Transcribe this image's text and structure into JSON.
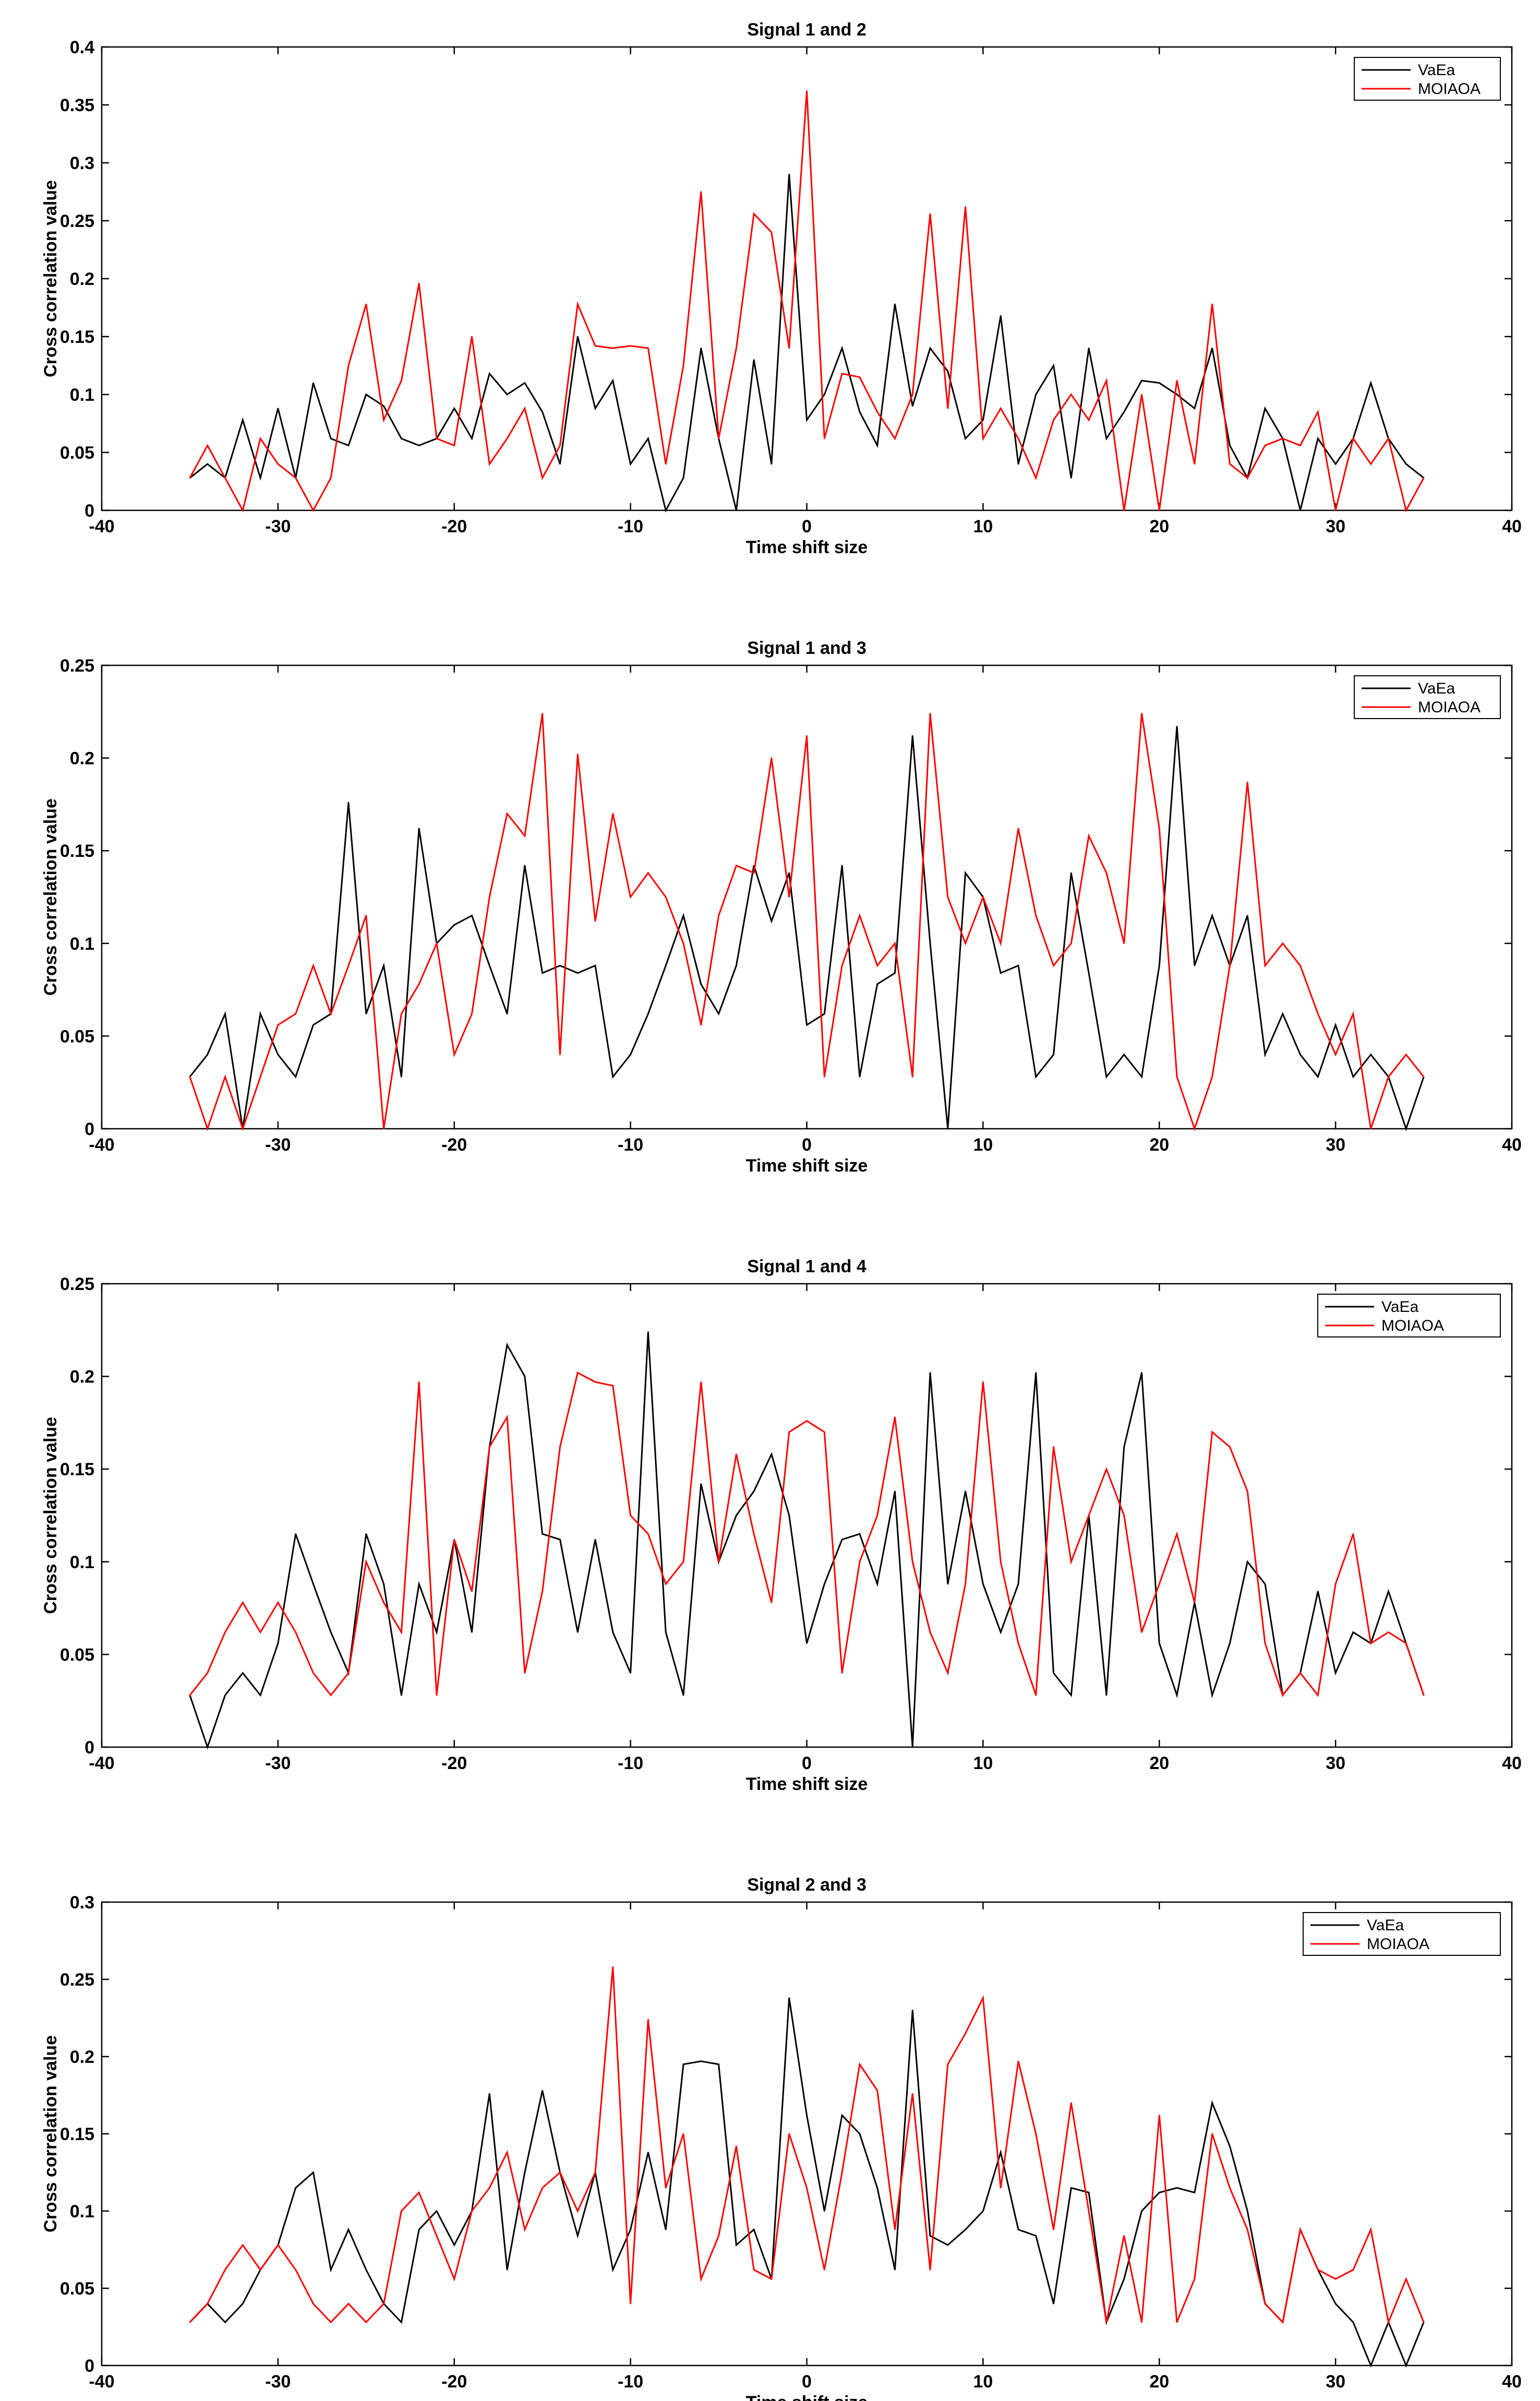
{
  "chart_data": [
    {
      "type": "line",
      "title": "Signal 1 and 2",
      "xlabel": "Time shift size",
      "ylabel": "Cross correlation value",
      "xlim": [
        -40,
        40
      ],
      "ylim": [
        0,
        0.4
      ],
      "xticks": [
        -40,
        -30,
        -20,
        -10,
        0,
        10,
        20,
        30,
        40
      ],
      "yticks": [
        0,
        0.05,
        0.1,
        0.15,
        0.2,
        0.25,
        0.3,
        0.35,
        0.4
      ],
      "xtick_labels": [
        "-40",
        "-30",
        "-20",
        "-10",
        "0",
        "10",
        "20",
        "30",
        "40"
      ],
      "ytick_labels": [
        "0",
        "0.05",
        "0.1",
        "0.15",
        "0.2",
        "0.25",
        "0.3",
        "0.35",
        "0.4"
      ],
      "legend_position": "top-right",
      "x": [
        -35,
        -34,
        -33,
        -32,
        -31,
        -30,
        -29,
        -28,
        -27,
        -26,
        -25,
        -24,
        -23,
        -22,
        -21,
        -20,
        -19,
        -18,
        -17,
        -16,
        -15,
        -14,
        -13,
        -12,
        -11,
        -10,
        -9,
        -8,
        -7,
        -6,
        -5,
        -4,
        -3,
        -2,
        -1,
        0,
        1,
        2,
        3,
        4,
        5,
        6,
        7,
        8,
        9,
        10,
        11,
        12,
        13,
        14,
        15,
        16,
        17,
        18,
        19,
        20,
        21,
        22,
        23,
        24,
        25,
        26,
        27,
        28,
        29,
        30,
        31,
        32,
        33,
        34,
        35
      ],
      "series": [
        {
          "name": "VaEa",
          "color": "#000000",
          "values": [
            0.028,
            0.04,
            0.028,
            0.078,
            0.028,
            0.088,
            0.028,
            0.11,
            0.062,
            0.056,
            0.1,
            0.09,
            0.062,
            0.056,
            0.062,
            0.088,
            0.062,
            0.118,
            0.1,
            0.11,
            0.085,
            0.04,
            0.15,
            0.088,
            0.112,
            0.04,
            0.062,
            0.0,
            0.028,
            0.14,
            0.062,
            0.0,
            0.13,
            0.04,
            0.29,
            0.078,
            0.1,
            0.14,
            0.085,
            0.056,
            0.178,
            0.09,
            0.14,
            0.12,
            0.062,
            0.078,
            0.168,
            0.04,
            0.1,
            0.125,
            0.028,
            0.14,
            0.062,
            0.085,
            0.112,
            0.11,
            0.1,
            0.088,
            0.14,
            0.056,
            0.028,
            0.088,
            0.062,
            0.0,
            0.062,
            0.04,
            0.062,
            0.11,
            0.062,
            0.04,
            0.028
          ]
        },
        {
          "name": "MOIAOA",
          "color": "#ff0000",
          "values": [
            0.028,
            0.056,
            0.028,
            0.0,
            0.062,
            0.04,
            0.028,
            0.0,
            0.028,
            0.125,
            0.178,
            0.078,
            0.112,
            0.196,
            0.062,
            0.056,
            0.15,
            0.04,
            0.062,
            0.088,
            0.028,
            0.056,
            0.178,
            0.142,
            0.14,
            0.142,
            0.14,
            0.04,
            0.125,
            0.275,
            0.062,
            0.14,
            0.256,
            0.24,
            0.14,
            0.362,
            0.062,
            0.118,
            0.115,
            0.085,
            0.062,
            0.1,
            0.256,
            0.088,
            0.262,
            0.062,
            0.088,
            0.062,
            0.028,
            0.078,
            0.1,
            0.078,
            0.112,
            0.0,
            0.1,
            0.0,
            0.112,
            0.04,
            0.178,
            0.04,
            0.028,
            0.056,
            0.062,
            0.056,
            0.085,
            0.0,
            0.062,
            0.04,
            0.062,
            0.0,
            0.028
          ]
        }
      ]
    },
    {
      "type": "line",
      "title": "Signal 1 and 3",
      "xlabel": "Time shift size",
      "ylabel": "Cross correlation value",
      "xlim": [
        -40,
        40
      ],
      "ylim": [
        0,
        0.25
      ],
      "xticks": [
        -40,
        -30,
        -20,
        -10,
        0,
        10,
        20,
        30,
        40
      ],
      "yticks": [
        0,
        0.05,
        0.1,
        0.15,
        0.2,
        0.25
      ],
      "xtick_labels": [
        "-40",
        "-30",
        "-20",
        "-10",
        "0",
        "10",
        "20",
        "30",
        "40"
      ],
      "ytick_labels": [
        "0",
        "0.05",
        "0.1",
        "0.15",
        "0.2",
        "0.25"
      ],
      "legend_position": "top-right",
      "x": [
        -35,
        -34,
        -33,
        -32,
        -31,
        -30,
        -29,
        -28,
        -27,
        -26,
        -25,
        -24,
        -23,
        -22,
        -21,
        -20,
        -19,
        -18,
        -17,
        -16,
        -15,
        -14,
        -13,
        -12,
        -11,
        -10,
        -9,
        -8,
        -7,
        -6,
        -5,
        -4,
        -3,
        -2,
        -1,
        0,
        1,
        2,
        3,
        4,
        5,
        6,
        7,
        8,
        9,
        10,
        11,
        12,
        13,
        14,
        15,
        16,
        17,
        18,
        19,
        20,
        21,
        22,
        23,
        24,
        25,
        26,
        27,
        28,
        29,
        30,
        31,
        32,
        33,
        34,
        35
      ],
      "series": [
        {
          "name": "VaEa",
          "color": "#000000",
          "values": [
            0.028,
            0.04,
            0.062,
            0.0,
            0.062,
            0.04,
            0.028,
            0.056,
            0.062,
            0.176,
            0.062,
            0.088,
            0.028,
            0.162,
            0.1,
            0.11,
            0.115,
            0.088,
            0.062,
            0.142,
            0.084,
            0.088,
            0.084,
            0.088,
            0.028,
            0.04,
            0.062,
            0.088,
            0.115,
            0.078,
            0.062,
            0.088,
            0.142,
            0.112,
            0.138,
            0.056,
            0.062,
            0.142,
            0.028,
            0.078,
            0.084,
            0.212,
            0.1,
            0.0,
            0.138,
            0.125,
            0.084,
            0.088,
            0.028,
            0.04,
            0.138,
            0.084,
            0.028,
            0.04,
            0.028,
            0.088,
            0.217,
            0.088,
            0.115,
            0.088,
            0.115,
            0.04,
            0.062,
            0.04,
            0.028,
            0.056,
            0.028,
            0.04,
            0.028,
            0.0,
            0.028
          ]
        },
        {
          "name": "MOIAOA",
          "color": "#ff0000",
          "values": [
            0.028,
            0.0,
            0.028,
            0.0,
            0.028,
            0.056,
            0.062,
            0.088,
            0.062,
            0.088,
            0.115,
            0.0,
            0.062,
            0.078,
            0.1,
            0.04,
            0.062,
            0.125,
            0.17,
            0.158,
            0.224,
            0.04,
            0.202,
            0.112,
            0.17,
            0.125,
            0.138,
            0.125,
            0.1,
            0.056,
            0.115,
            0.142,
            0.138,
            0.2,
            0.125,
            0.212,
            0.028,
            0.088,
            0.115,
            0.088,
            0.1,
            0.028,
            0.224,
            0.125,
            0.1,
            0.125,
            0.1,
            0.162,
            0.115,
            0.088,
            0.1,
            0.158,
            0.138,
            0.1,
            0.224,
            0.162,
            0.028,
            0.0,
            0.028,
            0.088,
            0.187,
            0.088,
            0.1,
            0.088,
            0.062,
            0.04,
            0.062,
            0.0,
            0.028,
            0.04,
            0.028
          ]
        }
      ]
    },
    {
      "type": "line",
      "title": "Signal 1 and 4",
      "xlabel": "Time shift size",
      "ylabel": "Cross correlation value",
      "xlim": [
        -40,
        40
      ],
      "ylim": [
        0,
        0.25
      ],
      "xticks": [
        -40,
        -30,
        -20,
        -10,
        0,
        10,
        20,
        30,
        40
      ],
      "yticks": [
        0,
        0.05,
        0.1,
        0.15,
        0.2,
        0.25
      ],
      "xtick_labels": [
        "-40",
        "-30",
        "-20",
        "-10",
        "0",
        "10",
        "20",
        "30",
        "40"
      ],
      "ytick_labels": [
        "0",
        "0.05",
        "0.1",
        "0.15",
        "0.2",
        "0.25"
      ],
      "legend_position": "top-right",
      "x": [
        -35,
        -34,
        -33,
        -32,
        -31,
        -30,
        -29,
        -28,
        -27,
        -26,
        -25,
        -24,
        -23,
        -22,
        -21,
        -20,
        -19,
        -18,
        -17,
        -16,
        -15,
        -14,
        -13,
        -12,
        -11,
        -10,
        -9,
        -8,
        -7,
        -6,
        -5,
        -4,
        -3,
        -2,
        -1,
        0,
        1,
        2,
        3,
        4,
        5,
        6,
        7,
        8,
        9,
        10,
        11,
        12,
        13,
        14,
        15,
        16,
        17,
        18,
        19,
        20,
        21,
        22,
        23,
        24,
        25,
        26,
        27,
        28,
        29,
        30,
        31,
        32,
        33,
        34,
        35
      ],
      "series": [
        {
          "name": "VaEa",
          "color": "#000000",
          "values": [
            0.028,
            0.0,
            0.028,
            0.04,
            0.028,
            0.056,
            0.115,
            0.088,
            0.062,
            0.04,
            0.115,
            0.088,
            0.028,
            0.088,
            0.062,
            0.112,
            0.062,
            0.162,
            0.217,
            0.2,
            0.115,
            0.112,
            0.062,
            0.112,
            0.062,
            0.04,
            0.224,
            0.062,
            0.028,
            0.142,
            0.1,
            0.125,
            0.138,
            0.158,
            0.125,
            0.056,
            0.088,
            0.112,
            0.115,
            0.088,
            0.138,
            0.0,
            0.202,
            0.088,
            0.138,
            0.088,
            0.062,
            0.088,
            0.202,
            0.04,
            0.028,
            0.125,
            0.028,
            0.162,
            0.202,
            0.056,
            0.028,
            0.078,
            0.028,
            0.056,
            0.1,
            0.088,
            0.028,
            0.04,
            0.084,
            0.04,
            0.062,
            0.056,
            0.084,
            0.056,
            0.028
          ]
        },
        {
          "name": "MOIAOA",
          "color": "#ff0000",
          "values": [
            0.028,
            0.04,
            0.062,
            0.078,
            0.062,
            0.078,
            0.062,
            0.04,
            0.028,
            0.04,
            0.1,
            0.078,
            0.062,
            0.197,
            0.028,
            0.112,
            0.084,
            0.162,
            0.178,
            0.04,
            0.084,
            0.162,
            0.202,
            0.197,
            0.195,
            0.125,
            0.115,
            0.088,
            0.1,
            0.197,
            0.1,
            0.158,
            0.115,
            0.078,
            0.17,
            0.176,
            0.17,
            0.04,
            0.1,
            0.125,
            0.178,
            0.1,
            0.062,
            0.04,
            0.088,
            0.197,
            0.1,
            0.056,
            0.028,
            0.162,
            0.1,
            0.125,
            0.15,
            0.125,
            0.062,
            0.088,
            0.115,
            0.078,
            0.17,
            0.162,
            0.138,
            0.056,
            0.028,
            0.04,
            0.028,
            0.088,
            0.115,
            0.056,
            0.062,
            0.056,
            0.028
          ]
        }
      ]
    },
    {
      "type": "line",
      "title": "Signal 2 and 3",
      "xlabel": "Time shift size",
      "ylabel": "Cross correlation value",
      "xlim": [
        -40,
        40
      ],
      "ylim": [
        0,
        0.3
      ],
      "xticks": [
        -40,
        -30,
        -20,
        -10,
        0,
        10,
        20,
        30,
        40
      ],
      "yticks": [
        0,
        0.05,
        0.1,
        0.15,
        0.2,
        0.25,
        0.3
      ],
      "xtick_labels": [
        "-40",
        "-30",
        "-20",
        "-10",
        "0",
        "10",
        "20",
        "30",
        "40"
      ],
      "ytick_labels": [
        "0",
        "0.05",
        "0.1",
        "0.15",
        "0.2",
        "0.25",
        "0.3"
      ],
      "legend_position": "top-right",
      "x": [
        -35,
        -34,
        -33,
        -32,
        -31,
        -30,
        -29,
        -28,
        -27,
        -26,
        -25,
        -24,
        -23,
        -22,
        -21,
        -20,
        -19,
        -18,
        -17,
        -16,
        -15,
        -14,
        -13,
        -12,
        -11,
        -10,
        -9,
        -8,
        -7,
        -6,
        -5,
        -4,
        -3,
        -2,
        -1,
        0,
        1,
        2,
        3,
        4,
        5,
        6,
        7,
        8,
        9,
        10,
        11,
        12,
        13,
        14,
        15,
        16,
        17,
        18,
        19,
        20,
        21,
        22,
        23,
        24,
        25,
        26,
        27,
        28,
        29,
        30,
        31,
        32,
        33,
        34,
        35
      ],
      "series": [
        {
          "name": "VaEa",
          "color": "#000000",
          "values": [
            0.028,
            0.04,
            0.028,
            0.04,
            0.062,
            0.078,
            0.115,
            0.125,
            0.062,
            0.088,
            0.062,
            0.04,
            0.028,
            0.088,
            0.1,
            0.078,
            0.1,
            0.176,
            0.062,
            0.125,
            0.178,
            0.125,
            0.084,
            0.125,
            0.062,
            0.088,
            0.138,
            0.088,
            0.195,
            0.197,
            0.195,
            0.078,
            0.088,
            0.056,
            0.238,
            0.162,
            0.1,
            0.162,
            0.15,
            0.115,
            0.062,
            0.23,
            0.084,
            0.078,
            0.088,
            0.1,
            0.138,
            0.088,
            0.084,
            0.04,
            0.115,
            0.112,
            0.028,
            0.056,
            0.1,
            0.112,
            0.115,
            0.112,
            0.17,
            0.142,
            0.1,
            0.04,
            0.028,
            0.088,
            0.062,
            0.04,
            0.028,
            0.0,
            0.028,
            0.0,
            0.028
          ]
        },
        {
          "name": "MOIAOA",
          "color": "#ff0000",
          "values": [
            0.028,
            0.04,
            0.062,
            0.078,
            0.062,
            0.078,
            0.062,
            0.04,
            0.028,
            0.04,
            0.028,
            0.04,
            0.1,
            0.112,
            0.084,
            0.056,
            0.1,
            0.115,
            0.138,
            0.088,
            0.115,
            0.125,
            0.1,
            0.125,
            0.258,
            0.04,
            0.224,
            0.115,
            0.15,
            0.056,
            0.084,
            0.142,
            0.062,
            0.056,
            0.15,
            0.115,
            0.062,
            0.125,
            0.195,
            0.178,
            0.088,
            0.176,
            0.062,
            0.195,
            0.215,
            0.238,
            0.115,
            0.197,
            0.15,
            0.088,
            0.17,
            0.1,
            0.028,
            0.084,
            0.028,
            0.162,
            0.028,
            0.056,
            0.15,
            0.115,
            0.088,
            0.04,
            0.028,
            0.088,
            0.062,
            0.056,
            0.062,
            0.088,
            0.028,
            0.056,
            0.028
          ]
        }
      ]
    }
  ]
}
